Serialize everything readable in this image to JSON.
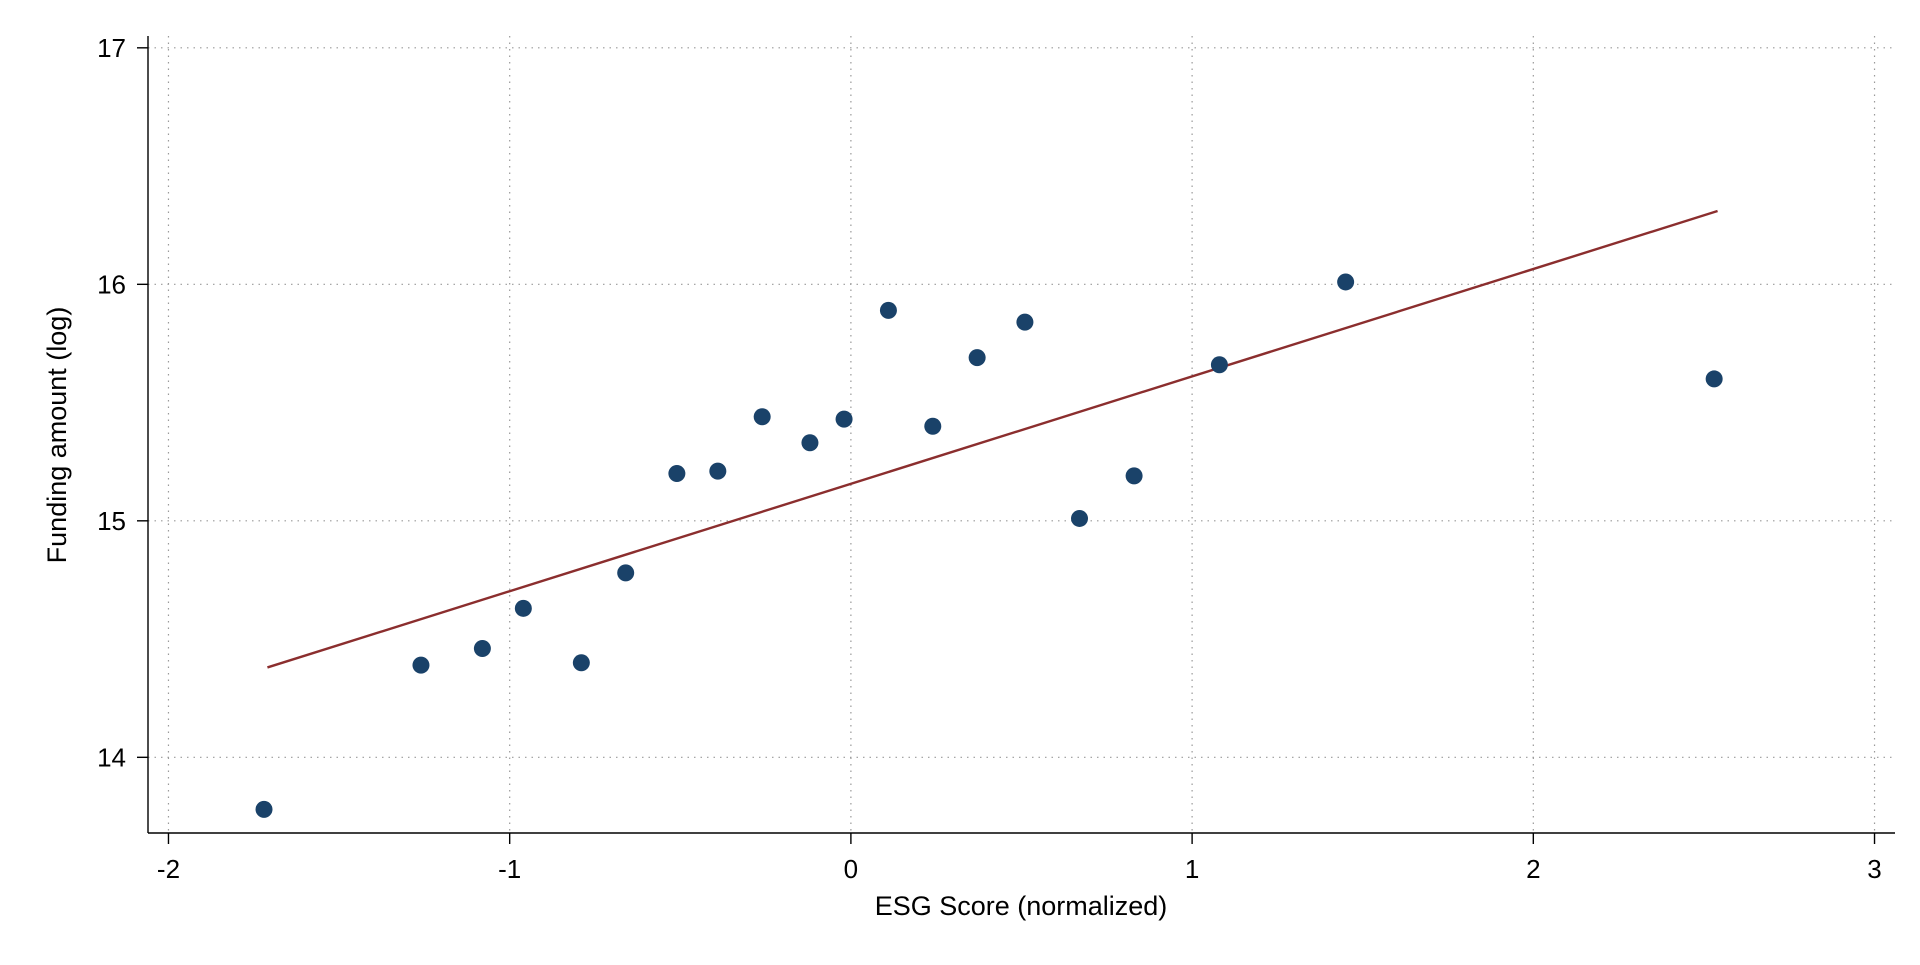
{
  "chart_data": {
    "type": "scatter",
    "title": "",
    "xlabel": "ESG Score (normalized)",
    "ylabel": "Funding amount (log)",
    "xlim": [
      -2.06,
      3.06
    ],
    "ylim": [
      13.68,
      17.05
    ],
    "x_ticks": [
      -2,
      -1,
      0,
      1,
      2,
      3
    ],
    "y_ticks": [
      14,
      15,
      16,
      17
    ],
    "x_tick_labels": [
      "-2",
      "-1",
      "0",
      "1",
      "2",
      "3"
    ],
    "y_tick_labels": [
      "14",
      "15",
      "16",
      "17"
    ],
    "grid": true,
    "legend": "none",
    "series": [
      {
        "kind": "scatter",
        "color": "#1a4269",
        "points": [
          {
            "x": -1.72,
            "y": 13.78
          },
          {
            "x": -1.26,
            "y": 14.39
          },
          {
            "x": -1.08,
            "y": 14.46
          },
          {
            "x": -0.96,
            "y": 14.63
          },
          {
            "x": -0.79,
            "y": 14.4
          },
          {
            "x": -0.66,
            "y": 14.78
          },
          {
            "x": -0.51,
            "y": 15.2
          },
          {
            "x": -0.39,
            "y": 15.21
          },
          {
            "x": -0.26,
            "y": 15.44
          },
          {
            "x": -0.12,
            "y": 15.33
          },
          {
            "x": -0.02,
            "y": 15.43
          },
          {
            "x": 0.11,
            "y": 15.89
          },
          {
            "x": 0.24,
            "y": 15.4
          },
          {
            "x": 0.37,
            "y": 15.69
          },
          {
            "x": 0.51,
            "y": 15.84
          },
          {
            "x": 0.67,
            "y": 15.01
          },
          {
            "x": 0.83,
            "y": 15.19
          },
          {
            "x": 1.08,
            "y": 15.66
          },
          {
            "x": 1.45,
            "y": 16.01
          },
          {
            "x": 2.53,
            "y": 15.6
          }
        ]
      },
      {
        "kind": "line",
        "color": "#8b2e2e",
        "points": [
          {
            "x": -1.71,
            "y": 14.38
          },
          {
            "x": 2.54,
            "y": 16.31
          }
        ]
      }
    ]
  }
}
